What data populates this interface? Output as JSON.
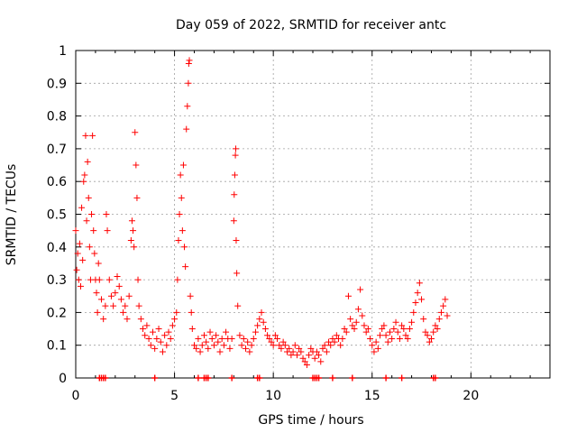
{
  "chart_data": {
    "type": "scatter",
    "title": "Day 059 of 2022, SRMTID for receiver antc",
    "xlabel": "GPS time / hours",
    "ylabel": "SRMTID / TECUs",
    "xlim": [
      0,
      24
    ],
    "ylim": [
      0,
      1
    ],
    "x_ticks": [
      "0",
      "5",
      "10",
      "15",
      "20"
    ],
    "x_tick_values": [
      0,
      5,
      10,
      15,
      20
    ],
    "y_ticks": [
      "0",
      "0.1",
      "0.2",
      "0.3",
      "0.4",
      "0.5",
      "0.6",
      "0.7",
      "0.8",
      "0.9",
      "1"
    ],
    "y_tick_values": [
      0,
      0.1,
      0.2,
      0.3,
      0.4,
      0.5,
      0.6,
      0.7,
      0.8,
      0.9,
      1
    ],
    "grid": true,
    "marker": "plus",
    "color": "#ff0000",
    "series": [
      {
        "name": "SRMTID",
        "points": [
          [
            0.0,
            0.45
          ],
          [
            0.05,
            0.33
          ],
          [
            0.1,
            0.38
          ],
          [
            0.15,
            0.3
          ],
          [
            0.2,
            0.41
          ],
          [
            0.25,
            0.28
          ],
          [
            0.3,
            0.52
          ],
          [
            0.35,
            0.36
          ],
          [
            0.4,
            0.6
          ],
          [
            0.45,
            0.62
          ],
          [
            0.5,
            0.74
          ],
          [
            0.55,
            0.48
          ],
          [
            0.6,
            0.66
          ],
          [
            0.65,
            0.55
          ],
          [
            0.7,
            0.4
          ],
          [
            0.75,
            0.3
          ],
          [
            0.8,
            0.5
          ],
          [
            0.85,
            0.74
          ],
          [
            0.9,
            0.45
          ],
          [
            0.95,
            0.38
          ],
          [
            1.0,
            0.3
          ],
          [
            1.05,
            0.26
          ],
          [
            1.1,
            0.2
          ],
          [
            1.15,
            0.35
          ],
          [
            1.2,
            0.3
          ],
          [
            1.3,
            0.24
          ],
          [
            1.4,
            0.18
          ],
          [
            1.5,
            0.22
          ],
          [
            1.55,
            0.5
          ],
          [
            1.6,
            0.45
          ],
          [
            1.7,
            0.3
          ],
          [
            1.8,
            0.25
          ],
          [
            1.9,
            0.22
          ],
          [
            2.0,
            0.26
          ],
          [
            2.1,
            0.31
          ],
          [
            2.2,
            0.28
          ],
          [
            2.3,
            0.24
          ],
          [
            2.4,
            0.2
          ],
          [
            2.5,
            0.22
          ],
          [
            2.6,
            0.18
          ],
          [
            2.7,
            0.25
          ],
          [
            2.8,
            0.42
          ],
          [
            2.85,
            0.48
          ],
          [
            2.9,
            0.45
          ],
          [
            2.95,
            0.4
          ],
          [
            3.0,
            0.75
          ],
          [
            3.05,
            0.65
          ],
          [
            3.1,
            0.55
          ],
          [
            3.15,
            0.3
          ],
          [
            3.2,
            0.22
          ],
          [
            3.3,
            0.18
          ],
          [
            3.4,
            0.15
          ],
          [
            3.5,
            0.13
          ],
          [
            3.6,
            0.16
          ],
          [
            3.7,
            0.12
          ],
          [
            3.8,
            0.1
          ],
          [
            3.9,
            0.14
          ],
          [
            4.0,
            0.09
          ],
          [
            4.1,
            0.12
          ],
          [
            4.2,
            0.15
          ],
          [
            4.3,
            0.11
          ],
          [
            4.4,
            0.08
          ],
          [
            4.5,
            0.13
          ],
          [
            4.6,
            0.1
          ],
          [
            4.7,
            0.14
          ],
          [
            4.8,
            0.12
          ],
          [
            4.9,
            0.16
          ],
          [
            5.0,
            0.18
          ],
          [
            5.1,
            0.2
          ],
          [
            5.15,
            0.3
          ],
          [
            5.2,
            0.42
          ],
          [
            5.25,
            0.5
          ],
          [
            5.3,
            0.62
          ],
          [
            5.35,
            0.55
          ],
          [
            5.4,
            0.45
          ],
          [
            5.45,
            0.65
          ],
          [
            5.5,
            0.4
          ],
          [
            5.55,
            0.34
          ],
          [
            5.6,
            0.76
          ],
          [
            5.65,
            0.83
          ],
          [
            5.7,
            0.9
          ],
          [
            5.72,
            0.96
          ],
          [
            5.75,
            0.97
          ],
          [
            5.8,
            0.25
          ],
          [
            5.85,
            0.2
          ],
          [
            5.9,
            0.15
          ],
          [
            6.0,
            0.1
          ],
          [
            6.1,
            0.09
          ],
          [
            6.2,
            0.12
          ],
          [
            6.3,
            0.08
          ],
          [
            6.4,
            0.1
          ],
          [
            6.5,
            0.13
          ],
          [
            6.6,
            0.11
          ],
          [
            6.7,
            0.09
          ],
          [
            6.8,
            0.14
          ],
          [
            6.9,
            0.12
          ],
          [
            7.0,
            0.1
          ],
          [
            7.1,
            0.13
          ],
          [
            7.2,
            0.11
          ],
          [
            7.3,
            0.08
          ],
          [
            7.4,
            0.12
          ],
          [
            7.5,
            0.1
          ],
          [
            7.6,
            0.14
          ],
          [
            7.7,
            0.12
          ],
          [
            7.8,
            0.09
          ],
          [
            7.9,
            0.12
          ],
          [
            8.0,
            0.48
          ],
          [
            8.02,
            0.56
          ],
          [
            8.05,
            0.62
          ],
          [
            8.08,
            0.68
          ],
          [
            8.1,
            0.7
          ],
          [
            8.12,
            0.42
          ],
          [
            8.15,
            0.32
          ],
          [
            8.2,
            0.22
          ],
          [
            8.3,
            0.13
          ],
          [
            8.4,
            0.1
          ],
          [
            8.5,
            0.12
          ],
          [
            8.6,
            0.09
          ],
          [
            8.7,
            0.11
          ],
          [
            8.8,
            0.08
          ],
          [
            8.9,
            0.1
          ],
          [
            9.0,
            0.12
          ],
          [
            9.1,
            0.14
          ],
          [
            9.2,
            0.16
          ],
          [
            9.3,
            0.18
          ],
          [
            9.4,
            0.2
          ],
          [
            9.5,
            0.17
          ],
          [
            9.6,
            0.15
          ],
          [
            9.7,
            0.13
          ],
          [
            9.8,
            0.12
          ],
          [
            9.9,
            0.11
          ],
          [
            10.0,
            0.1
          ],
          [
            10.1,
            0.13
          ],
          [
            10.2,
            0.12
          ],
          [
            10.3,
            0.1
          ],
          [
            10.4,
            0.09
          ],
          [
            10.5,
            0.11
          ],
          [
            10.6,
            0.1
          ],
          [
            10.7,
            0.08
          ],
          [
            10.8,
            0.09
          ],
          [
            10.9,
            0.07
          ],
          [
            11.0,
            0.08
          ],
          [
            11.1,
            0.1
          ],
          [
            11.2,
            0.07
          ],
          [
            11.3,
            0.09
          ],
          [
            11.4,
            0.08
          ],
          [
            11.5,
            0.06
          ],
          [
            11.6,
            0.05
          ],
          [
            11.7,
            0.04
          ],
          [
            11.8,
            0.07
          ],
          [
            11.9,
            0.09
          ],
          [
            12.0,
            0.08
          ],
          [
            12.1,
            0.06
          ],
          [
            12.2,
            0.08
          ],
          [
            12.3,
            0.07
          ],
          [
            12.4,
            0.05
          ],
          [
            12.5,
            0.09
          ],
          [
            12.6,
            0.1
          ],
          [
            12.7,
            0.08
          ],
          [
            12.8,
            0.11
          ],
          [
            12.9,
            0.1
          ],
          [
            13.0,
            0.12
          ],
          [
            13.1,
            0.11
          ],
          [
            13.2,
            0.13
          ],
          [
            13.3,
            0.12
          ],
          [
            13.4,
            0.1
          ],
          [
            13.5,
            0.12
          ],
          [
            13.6,
            0.15
          ],
          [
            13.7,
            0.14
          ],
          [
            13.8,
            0.25
          ],
          [
            13.9,
            0.18
          ],
          [
            14.0,
            0.16
          ],
          [
            14.1,
            0.15
          ],
          [
            14.2,
            0.17
          ],
          [
            14.3,
            0.21
          ],
          [
            14.4,
            0.27
          ],
          [
            14.5,
            0.19
          ],
          [
            14.6,
            0.16
          ],
          [
            14.7,
            0.14
          ],
          [
            14.8,
            0.15
          ],
          [
            14.9,
            0.12
          ],
          [
            15.0,
            0.1
          ],
          [
            15.1,
            0.08
          ],
          [
            15.2,
            0.11
          ],
          [
            15.3,
            0.09
          ],
          [
            15.4,
            0.13
          ],
          [
            15.5,
            0.15
          ],
          [
            15.6,
            0.16
          ],
          [
            15.7,
            0.13
          ],
          [
            15.8,
            0.11
          ],
          [
            15.9,
            0.14
          ],
          [
            16.0,
            0.12
          ],
          [
            16.1,
            0.15
          ],
          [
            16.2,
            0.17
          ],
          [
            16.3,
            0.14
          ],
          [
            16.4,
            0.12
          ],
          [
            16.5,
            0.16
          ],
          [
            16.6,
            0.15
          ],
          [
            16.7,
            0.13
          ],
          [
            16.8,
            0.12
          ],
          [
            16.9,
            0.15
          ],
          [
            17.0,
            0.17
          ],
          [
            17.1,
            0.2
          ],
          [
            17.2,
            0.23
          ],
          [
            17.3,
            0.26
          ],
          [
            17.4,
            0.29
          ],
          [
            17.5,
            0.24
          ],
          [
            17.6,
            0.18
          ],
          [
            17.7,
            0.14
          ],
          [
            17.8,
            0.13
          ],
          [
            17.9,
            0.11
          ],
          [
            18.0,
            0.12
          ],
          [
            18.1,
            0.14
          ],
          [
            18.2,
            0.16
          ],
          [
            18.3,
            0.15
          ],
          [
            18.4,
            0.18
          ],
          [
            18.5,
            0.2
          ],
          [
            18.6,
            0.22
          ],
          [
            18.7,
            0.24
          ],
          [
            18.8,
            0.19
          ]
        ]
      }
    ],
    "bottom_markers_x": [
      1.2,
      1.3,
      1.4,
      1.5,
      4.0,
      6.2,
      6.5,
      6.6,
      6.7,
      7.9,
      9.2,
      9.3,
      12.0,
      12.1,
      12.2,
      12.3,
      13.0,
      14.0,
      15.7,
      16.5,
      18.1,
      18.2
    ]
  }
}
